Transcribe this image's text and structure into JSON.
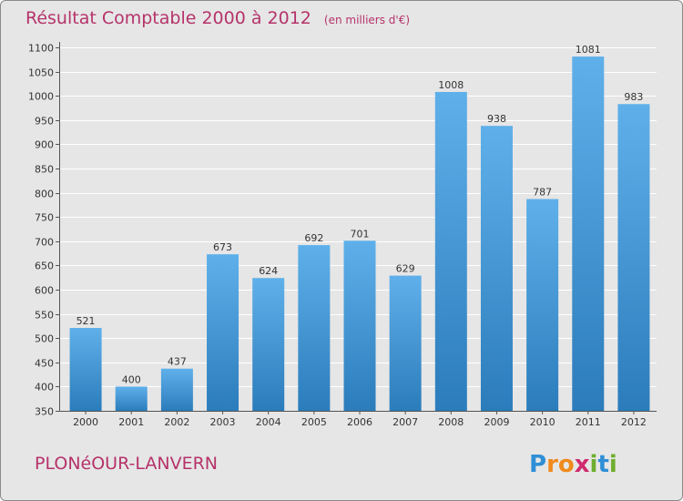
{
  "chart_data": {
    "type": "bar",
    "title": "Résultat Comptable 2000 à 2012",
    "subtitle": "(en milliers d'€)",
    "categories": [
      "2000",
      "2001",
      "2002",
      "2003",
      "2004",
      "2005",
      "2006",
      "2007",
      "2008",
      "2009",
      "2010",
      "2011",
      "2012"
    ],
    "values": [
      521,
      400,
      437,
      673,
      624,
      692,
      701,
      629,
      1008,
      938,
      787,
      1081,
      983
    ],
    "value_labels": [
      "521",
      "400",
      "437",
      "673",
      "624",
      "692",
      "701",
      "629",
      "1008",
      "938",
      "787",
      "1081",
      "983"
    ],
    "ylim": [
      350,
      1100
    ],
    "yticks": [
      "350",
      "400",
      "450",
      "500",
      "550",
      "600",
      "650",
      "700",
      "750",
      "800",
      "850",
      "900",
      "950",
      "1000",
      "1050",
      "1100"
    ],
    "grid": true,
    "xlabel": "",
    "ylabel": ""
  },
  "place_name": "PLONéOUR-LANVERN",
  "brand": {
    "name": "Proxiti",
    "letters": [
      "P",
      "r",
      "o",
      "x",
      "i",
      "t",
      "i"
    ],
    "colors": [
      "#2f8fd6",
      "#f08a1c",
      "#f08a1c",
      "#d12a6e",
      "#6fae2f",
      "#2f8fd6",
      "#6fae2f"
    ]
  },
  "colors": {
    "bar_light": "#5fb0ea",
    "bar_dark": "#2b7cbb",
    "title": "#b5336a",
    "grid": "#ffffff"
  }
}
